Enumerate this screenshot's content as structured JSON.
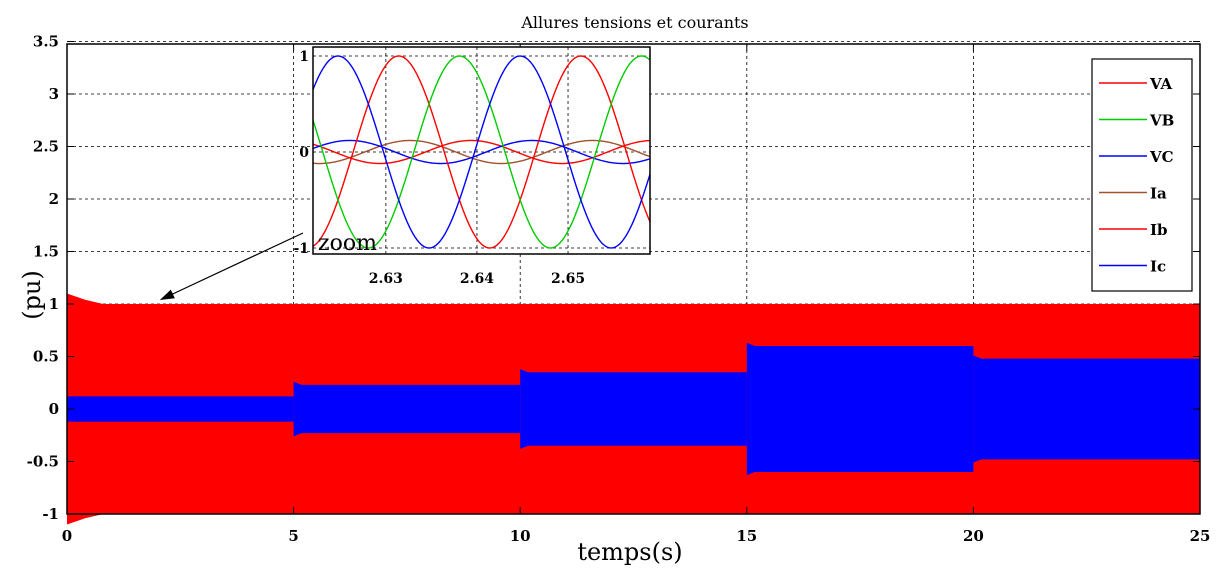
{
  "chart_data": {
    "type": "line",
    "title": "Allures tensions et courants",
    "xlabel": "temps(s)",
    "ylabel": "(pu)",
    "xlim": [
      0,
      25
    ],
    "ylim": [
      -1.2,
      3.55
    ],
    "x_ticks": [
      "0",
      "5",
      "10",
      "15",
      "20",
      "25"
    ],
    "y_ticks": [
      "-1",
      "-0.5",
      "0",
      "0.5",
      "1",
      "1.5",
      "2",
      "2.5",
      "3",
      "3.5"
    ],
    "grid": true,
    "legend_position": "top-right",
    "series": [
      {
        "name": "VA",
        "color": "#ff0000",
        "amplitude": 1.0
      },
      {
        "name": "VB",
        "color": "#00cc00",
        "amplitude": 1.0
      },
      {
        "name": "VC",
        "color": "#0000ff",
        "amplitude": 1.0
      },
      {
        "name": "Ia",
        "color": "#a0522d"
      },
      {
        "name": "Ib",
        "color": "#ff0000"
      },
      {
        "name": "Ic",
        "color": "#0000ff"
      }
    ],
    "current_envelope": {
      "segments": [
        {
          "from": 0,
          "to": 5,
          "amplitude": 0.12
        },
        {
          "from": 5,
          "to": 10,
          "amplitude": 0.23
        },
        {
          "from": 10,
          "to": 15,
          "amplitude": 0.35
        },
        {
          "from": 15,
          "to": 20,
          "amplitude": 0.6
        },
        {
          "from": 20,
          "to": 25,
          "amplitude": 0.48
        }
      ]
    },
    "inset": {
      "label": "zoom",
      "xlim": [
        2.622,
        2.659
      ],
      "ylim": [
        -1.05,
        1.05
      ],
      "x_ticks": [
        "2.63",
        "2.64",
        "2.65"
      ],
      "y_ticks": [
        "-1",
        "0",
        "1"
      ],
      "frequency_hz": 50,
      "voltage_amplitude": 1.0,
      "current_amplitude": 0.12
    }
  }
}
